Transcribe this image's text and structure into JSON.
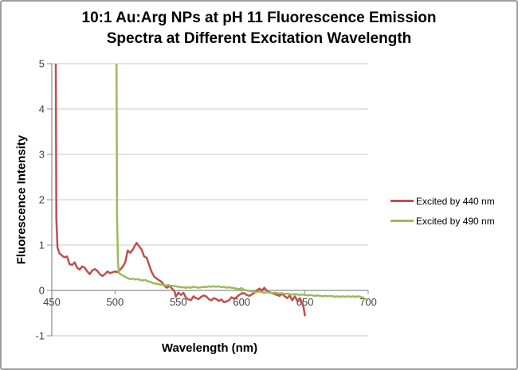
{
  "header": {
    "title_lines": [
      "10:1 Au:Arg NPs at pH 11 Fluorescence Emission",
      "Spectra at Different Excitation Wavelength"
    ]
  },
  "chart_data": {
    "type": "line",
    "title": "10:1 Au:Arg NPs at pH 11 Fluorescence Emission Spectra at Different Excitation Wavelength",
    "xlabel": "Wavelength (nm)",
    "ylabel": "Fluorescence Intensity",
    "xlim": [
      450,
      700
    ],
    "ylim": [
      -1,
      5
    ],
    "xticks": [
      450,
      500,
      550,
      600,
      650,
      700
    ],
    "yticks": [
      5,
      4,
      3,
      2,
      1,
      0,
      -1
    ],
    "grid": "horizontal-only",
    "legend_position": "right-outside",
    "colors": {
      "gridline": "#c9c9c9",
      "axis": "#8c8c8c",
      "tick_text": "#3f3f3f",
      "title_text": "#000000"
    },
    "series": [
      {
        "name": "Excited by 440 nm",
        "color": "#C0504D",
        "points": [
          [
            453,
            6
          ],
          [
            453.6,
            1.6
          ],
          [
            454.5,
            0.95
          ],
          [
            456,
            0.82
          ],
          [
            458,
            0.77
          ],
          [
            460,
            0.73
          ],
          [
            462,
            0.75
          ],
          [
            464,
            0.58
          ],
          [
            466,
            0.56
          ],
          [
            468,
            0.62
          ],
          [
            470,
            0.5
          ],
          [
            472,
            0.46
          ],
          [
            474,
            0.53
          ],
          [
            476,
            0.5
          ],
          [
            478,
            0.42
          ],
          [
            480,
            0.36
          ],
          [
            482,
            0.44
          ],
          [
            484,
            0.47
          ],
          [
            486,
            0.43
          ],
          [
            488,
            0.36
          ],
          [
            490,
            0.32
          ],
          [
            492,
            0.36
          ],
          [
            494,
            0.42
          ],
          [
            496,
            0.38
          ],
          [
            498,
            0.4
          ],
          [
            500,
            0.42
          ],
          [
            502,
            0.4
          ],
          [
            504,
            0.46
          ],
          [
            506,
            0.52
          ],
          [
            508,
            0.62
          ],
          [
            510,
            0.88
          ],
          [
            512,
            0.83
          ],
          [
            514,
            0.9
          ],
          [
            516,
            1.0
          ],
          [
            517,
            1.05
          ],
          [
            519,
            0.97
          ],
          [
            521,
            0.9
          ],
          [
            523,
            0.75
          ],
          [
            525,
            0.72
          ],
          [
            527,
            0.55
          ],
          [
            529,
            0.4
          ],
          [
            531,
            0.3
          ],
          [
            533,
            0.26
          ],
          [
            535,
            0.22
          ],
          [
            537,
            0.18
          ],
          [
            539,
            0.1
          ],
          [
            541,
            0.06
          ],
          [
            543,
            0.1
          ],
          [
            545,
            0.04
          ],
          [
            547,
            -0.02
          ],
          [
            548,
            -0.14
          ],
          [
            550,
            -0.05
          ],
          [
            552,
            -0.1
          ],
          [
            554,
            -0.05
          ],
          [
            556,
            -0.16
          ],
          [
            558,
            -0.2
          ],
          [
            560,
            -0.21
          ],
          [
            562,
            -0.13
          ],
          [
            564,
            -0.17
          ],
          [
            566,
            -0.19
          ],
          [
            568,
            -0.14
          ],
          [
            570,
            -0.11
          ],
          [
            572,
            -0.13
          ],
          [
            574,
            -0.19
          ],
          [
            576,
            -0.22
          ],
          [
            578,
            -0.17
          ],
          [
            580,
            -0.19
          ],
          [
            582,
            -0.23
          ],
          [
            584,
            -0.2
          ],
          [
            586,
            -0.26
          ],
          [
            588,
            -0.24
          ],
          [
            590,
            -0.22
          ],
          [
            592,
            -0.15
          ],
          [
            594,
            -0.18
          ],
          [
            596,
            -0.15
          ],
          [
            598,
            -0.1
          ],
          [
            600,
            -0.07
          ],
          [
            602,
            -0.06
          ],
          [
            604,
            -0.1
          ],
          [
            606,
            -0.12
          ],
          [
            608,
            -0.09
          ],
          [
            610,
            -0.05
          ],
          [
            612,
            0
          ],
          [
            614,
            0.04
          ],
          [
            616,
            0
          ],
          [
            618,
            0.06
          ],
          [
            620,
            -0.01
          ],
          [
            622,
            -0.04
          ],
          [
            624,
            -0.06
          ],
          [
            626,
            -0.08
          ],
          [
            628,
            -0.1
          ],
          [
            630,
            -0.12
          ],
          [
            632,
            -0.07
          ],
          [
            634,
            -0.13
          ],
          [
            636,
            -0.17
          ],
          [
            638,
            -0.11
          ],
          [
            640,
            -0.22
          ],
          [
            642,
            -0.13
          ],
          [
            644,
            -0.23
          ],
          [
            646,
            -0.17
          ],
          [
            648,
            -0.28
          ],
          [
            649,
            -0.38
          ],
          [
            650,
            -0.55
          ]
        ]
      },
      {
        "name": "Excited by 490 nm",
        "color": "#9BBB59",
        "points": [
          [
            501,
            6
          ],
          [
            501.6,
            1.6
          ],
          [
            502.3,
            0.6
          ],
          [
            503,
            0.4
          ],
          [
            504,
            0.36
          ],
          [
            506,
            0.33
          ],
          [
            508,
            0.3
          ],
          [
            510,
            0.27
          ],
          [
            512,
            0.25
          ],
          [
            514,
            0.26
          ],
          [
            516,
            0.24
          ],
          [
            518,
            0.25
          ],
          [
            520,
            0.23
          ],
          [
            522,
            0.22
          ],
          [
            524,
            0.23
          ],
          [
            526,
            0.2
          ],
          [
            528,
            0.19
          ],
          [
            530,
            0.16
          ],
          [
            532,
            0.15
          ],
          [
            534,
            0.14
          ],
          [
            536,
            0.13
          ],
          [
            538,
            0.12
          ],
          [
            540,
            0.11
          ],
          [
            542,
            0.12
          ],
          [
            544,
            0.1
          ],
          [
            546,
            0.1
          ],
          [
            548,
            0.09
          ],
          [
            550,
            0.08
          ],
          [
            552,
            0.07
          ],
          [
            554,
            0.07
          ],
          [
            556,
            0.06
          ],
          [
            558,
            0.07
          ],
          [
            560,
            0.06
          ],
          [
            562,
            0.08
          ],
          [
            564,
            0.07
          ],
          [
            566,
            0.06
          ],
          [
            568,
            0.07
          ],
          [
            570,
            0.08
          ],
          [
            572,
            0.07
          ],
          [
            574,
            0.09
          ],
          [
            576,
            0.08
          ],
          [
            578,
            0.09
          ],
          [
            580,
            0.08
          ],
          [
            582,
            0.09
          ],
          [
            584,
            0.07
          ],
          [
            586,
            0.08
          ],
          [
            588,
            0.06
          ],
          [
            590,
            0.07
          ],
          [
            592,
            0.06
          ],
          [
            594,
            0.05
          ],
          [
            596,
            0.04
          ],
          [
            598,
            0.03
          ],
          [
            600,
            0.05
          ],
          [
            602,
            0.01
          ],
          [
            604,
            0
          ],
          [
            606,
            -0.01
          ],
          [
            608,
            -0.02
          ],
          [
            610,
            -0.03
          ],
          [
            612,
            -0.04
          ],
          [
            614,
            -0.02
          ],
          [
            616,
            -0.04
          ],
          [
            618,
            -0.05
          ],
          [
            620,
            -0.04
          ],
          [
            622,
            -0.05
          ],
          [
            624,
            -0.06
          ],
          [
            626,
            -0.05
          ],
          [
            628,
            -0.06
          ],
          [
            630,
            -0.07
          ],
          [
            632,
            -0.06
          ],
          [
            634,
            -0.08
          ],
          [
            636,
            -0.07
          ],
          [
            638,
            -0.08
          ],
          [
            640,
            -0.09
          ],
          [
            642,
            -0.08
          ],
          [
            644,
            -0.09
          ],
          [
            646,
            -0.1
          ],
          [
            648,
            -0.09
          ],
          [
            650,
            -0.1
          ],
          [
            652,
            -0.11
          ],
          [
            654,
            -0.1
          ],
          [
            656,
            -0.11
          ],
          [
            658,
            -0.12
          ],
          [
            660,
            -0.11
          ],
          [
            662,
            -0.12
          ],
          [
            664,
            -0.13
          ],
          [
            666,
            -0.12
          ],
          [
            668,
            -0.13
          ],
          [
            670,
            -0.12
          ],
          [
            672,
            -0.13
          ],
          [
            674,
            -0.14
          ],
          [
            676,
            -0.13
          ],
          [
            678,
            -0.14
          ],
          [
            680,
            -0.13
          ],
          [
            682,
            -0.14
          ],
          [
            684,
            -0.13
          ],
          [
            686,
            -0.14
          ],
          [
            688,
            -0.13
          ],
          [
            690,
            -0.14
          ],
          [
            692,
            -0.13
          ],
          [
            694,
            -0.14
          ],
          [
            696,
            -0.16
          ],
          [
            698,
            -0.19
          ],
          [
            700,
            -0.21
          ]
        ]
      }
    ]
  }
}
